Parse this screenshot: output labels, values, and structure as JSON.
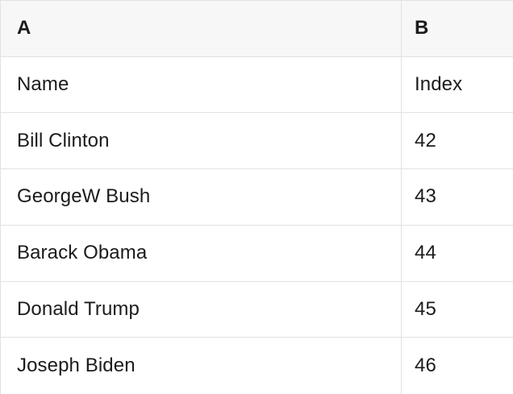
{
  "table": {
    "header": {
      "a": "A",
      "b": "B"
    },
    "rows": [
      {
        "a": "Name",
        "b": "Index"
      },
      {
        "a": "Bill Clinton",
        "b": "42"
      },
      {
        "a": "GeorgeW Bush",
        "b": "43"
      },
      {
        "a": "Barack Obama",
        "b": "44"
      },
      {
        "a": "Donald Trump",
        "b": "45"
      },
      {
        "a": "Joseph Biden",
        "b": "46"
      }
    ],
    "colors": {
      "grid_border": "#e2e2e2",
      "header_background": "#f7f7f8",
      "body_background": "#ffffff",
      "text": "#1b1b1b"
    }
  }
}
